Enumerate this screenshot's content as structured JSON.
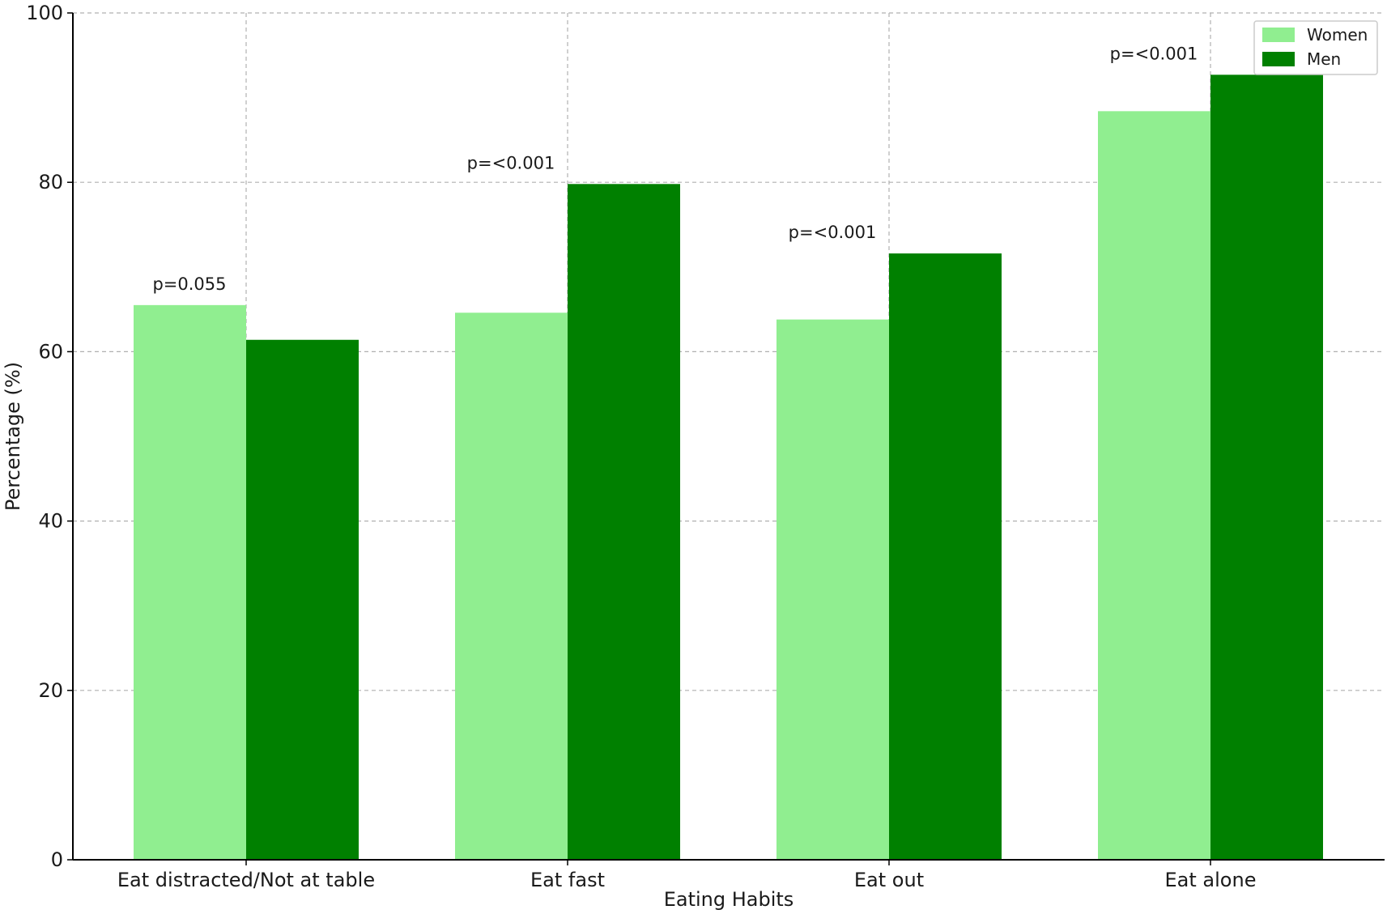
{
  "chart_data": {
    "type": "bar",
    "title": "",
    "xlabel": "Eating Habits",
    "ylabel": "Percentage (%)",
    "ylim": [
      0,
      100
    ],
    "yticks": [
      0,
      20,
      40,
      60,
      80,
      100
    ],
    "grid": true,
    "legend_position": "top-right",
    "categories": [
      "Eat distracted/Not at table",
      "Eat fast",
      "Eat out",
      "Eat alone"
    ],
    "series": [
      {
        "name": "Women",
        "color": "#90ee90",
        "values": [
          65.5,
          64.6,
          63.8,
          88.4
        ]
      },
      {
        "name": "Men",
        "color": "#008000",
        "values": [
          61.4,
          79.8,
          71.6,
          92.7
        ]
      }
    ],
    "annotations": [
      "p=0.055",
      "p=<0.001",
      "p=<0.001",
      "p=<0.001"
    ]
  }
}
